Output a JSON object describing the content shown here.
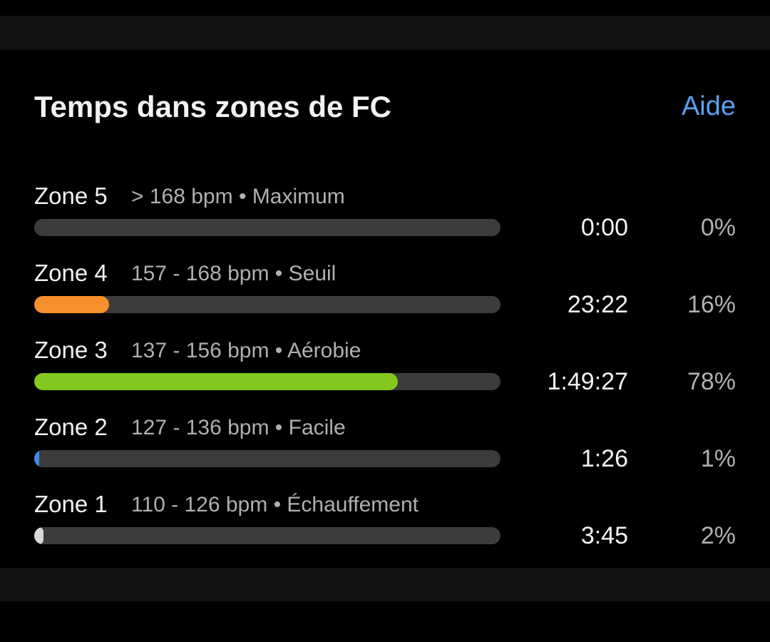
{
  "header": {
    "title": "Temps dans zones de FC",
    "help": "Aide"
  },
  "zones": [
    {
      "name": "Zone 5",
      "range": "> 168 bpm • Maximum",
      "time": "0:00",
      "percent": 0,
      "percent_label": "0%",
      "color": "#3c3c3c"
    },
    {
      "name": "Zone 4",
      "range": "157 - 168 bpm • Seuil",
      "time": "23:22",
      "percent": 16,
      "percent_label": "16%",
      "color": "#f7902a"
    },
    {
      "name": "Zone 3",
      "range": "137 - 156 bpm • Aérobie",
      "time": "1:49:27",
      "percent": 78,
      "percent_label": "78%",
      "color": "#82c81e"
    },
    {
      "name": "Zone 2",
      "range": "127 - 136 bpm • Facile",
      "time": "1:26",
      "percent": 1,
      "percent_label": "1%",
      "color": "#3d8be6"
    },
    {
      "name": "Zone 1",
      "range": "110 - 126 bpm • Échauffement",
      "time": "3:45",
      "percent": 2,
      "percent_label": "2%",
      "color": "#d8d8d8"
    }
  ]
}
